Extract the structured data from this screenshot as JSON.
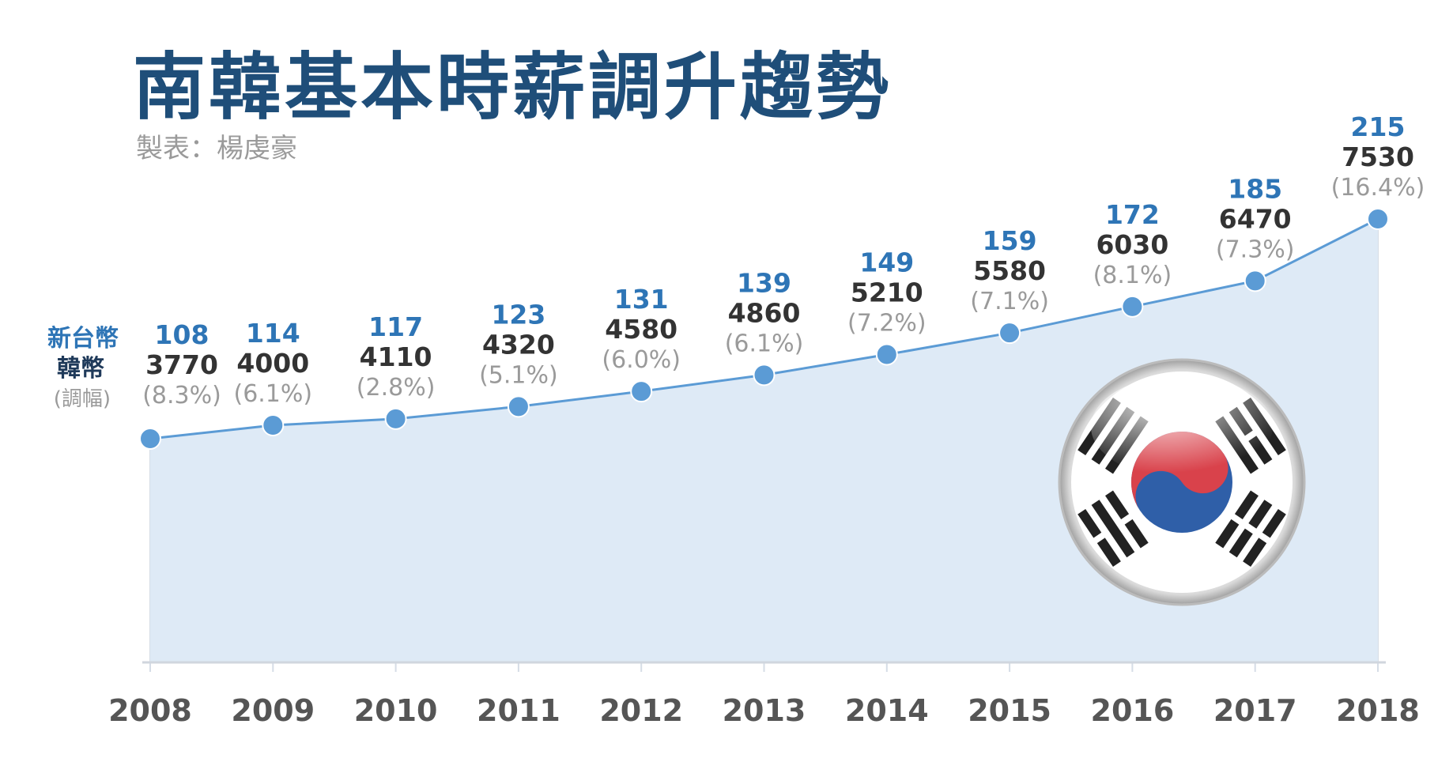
{
  "title": "南韓基本時薪調升趨勢",
  "credit": "製表：楊虔豪",
  "legend": {
    "twd": "新台幣",
    "krw": "韓幣",
    "pct": "(調幅)"
  },
  "colors": {
    "title": "#1f4e79",
    "line": "#5b9bd5",
    "area": "#deeaf6",
    "marker": "#5b9bd5",
    "twd_label": "#2e75b6",
    "krw_label": "#333333",
    "pct_label": "#9a9a9a"
  },
  "flag_icon": "south-korea-flag-icon",
  "chart_data": {
    "type": "area",
    "title": "南韓基本時薪調升趨勢",
    "categories": [
      "2008",
      "2009",
      "2010",
      "2011",
      "2012",
      "2013",
      "2014",
      "2015",
      "2016",
      "2017",
      "2018"
    ],
    "series": [
      {
        "name": "新台幣",
        "values": [
          108,
          114,
          117,
          123,
          131,
          139,
          149,
          159,
          172,
          185,
          215
        ]
      },
      {
        "name": "韓幣",
        "values": [
          3770,
          4000,
          4110,
          4320,
          4580,
          4860,
          5210,
          5580,
          6030,
          6470,
          7530
        ]
      },
      {
        "name": "調幅",
        "values": [
          "(8.3%)",
          "(6.1%)",
          "(2.8%)",
          "(5.1%)",
          "(6.0%)",
          "(6.1%)",
          "(7.2%)",
          "(7.1%)",
          "(8.1%)",
          "(7.3%)",
          "(16.4%)"
        ]
      }
    ],
    "plotted_series": "韓幣",
    "grid": "vertical",
    "xlabel": "",
    "ylabel": ""
  }
}
